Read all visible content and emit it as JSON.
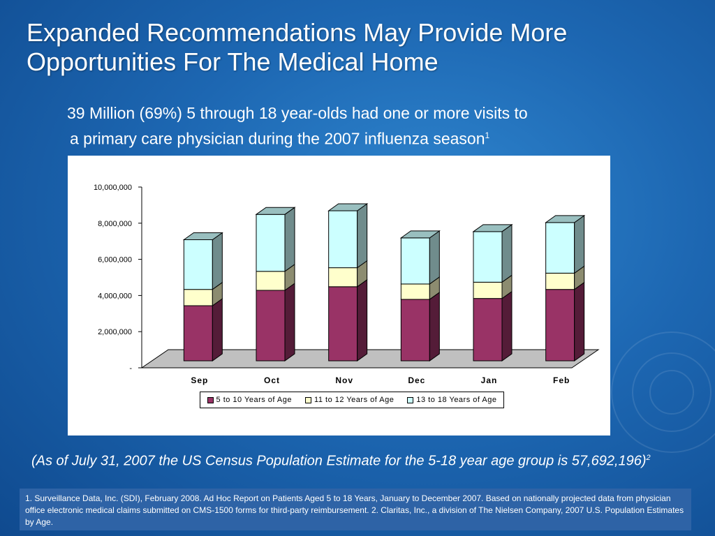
{
  "slide": {
    "title_line1": "Expanded Recommendations May Provide More",
    "title_line2": "Opportunities For The Medical Home",
    "subtitle_line1": "39 Million (69%) 5 through 18 year-olds had one or more visits to",
    "subtitle_line2": "a primary care physician during the 2007 influenza season",
    "subtitle_sup": "1",
    "note_text": "(As of July 31, 2007 the US Census Population Estimate for the 5-18 year age group is 57,692,196)",
    "note_sup": "2",
    "footnote": "1. Surveillance Data, Inc. (SDI), February 2008. Ad Hoc Report on Patients Aged 5 to 18 Years, January to December 2007. Based on nationally projected data from physician office electronic medical claims submitted on CMS-1500 forms for third-party reimbursement.  2. Claritas, Inc., a division of The Nielsen Company, 2007 U.S. Population Estimates by Age."
  },
  "chart_data": {
    "type": "bar",
    "stacked": true,
    "three_d": true,
    "categories": [
      "Sep",
      "Oct",
      "Nov",
      "Dec",
      "Jan",
      "Feb"
    ],
    "series": [
      {
        "name": "5 to 10 Years of Age",
        "color": "#993366",
        "values": [
          3050000,
          3900000,
          4100000,
          3400000,
          3450000,
          3950000
        ]
      },
      {
        "name": "11 to 12 Years of Age",
        "color": "#ffffcc",
        "values": [
          900000,
          1050000,
          1050000,
          850000,
          900000,
          900000
        ]
      },
      {
        "name": "13 to 18 Years of Age",
        "color": "#ccffff",
        "values": [
          2750000,
          3150000,
          3150000,
          2550000,
          2800000,
          2800000
        ]
      }
    ],
    "y_ticks": [
      "-",
      "2,000,000",
      "4,000,000",
      "6,000,000",
      "8,000,000",
      "10,000,000"
    ],
    "ylim": [
      0,
      10000000
    ],
    "legend_position": "bottom",
    "grid": false
  }
}
